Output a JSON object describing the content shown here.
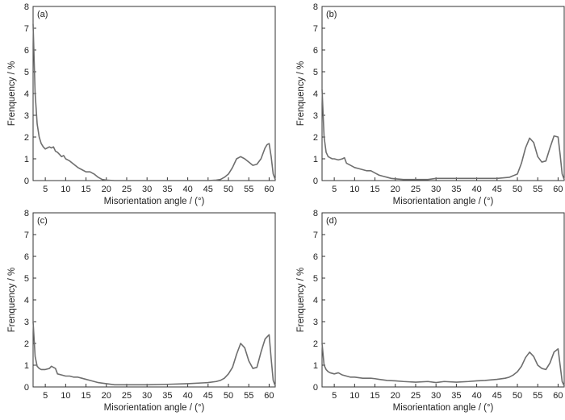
{
  "chart_data": [
    {
      "type": "line",
      "panel_label": "(a)",
      "xlabel": "Misorientation angle / (°)",
      "ylabel": "Frenquency / %",
      "xlim": [
        2,
        61.5
      ],
      "ylim": [
        0,
        8
      ],
      "xticks": [
        5,
        10,
        15,
        20,
        25,
        30,
        35,
        40,
        45,
        50,
        55,
        60
      ],
      "yticks": [
        0,
        1,
        2,
        3,
        4,
        5,
        6,
        7,
        8
      ],
      "grid": false,
      "line_color": "#6e6e6e",
      "series": [
        {
          "x": [
            2,
            2.5,
            3,
            3.5,
            4,
            4.5,
            5,
            5.5,
            6,
            6.5,
            7,
            7.5,
            8,
            8.5,
            9,
            9.5,
            10,
            10.5,
            11,
            12,
            13,
            14,
            15,
            16,
            17,
            18,
            19,
            20,
            22,
            25,
            30,
            35,
            40,
            45,
            47,
            48,
            49,
            50,
            51,
            52,
            53,
            54,
            55,
            56,
            57,
            58,
            59,
            59.5,
            60,
            60.5,
            61,
            61.5
          ],
          "y": [
            7.2,
            4.0,
            2.6,
            2.0,
            1.7,
            1.55,
            1.45,
            1.5,
            1.55,
            1.5,
            1.55,
            1.35,
            1.3,
            1.2,
            1.1,
            1.15,
            1.0,
            0.95,
            0.9,
            0.75,
            0.6,
            0.5,
            0.4,
            0.4,
            0.3,
            0.15,
            0.05,
            0.02,
            0.0,
            0.0,
            0.0,
            0.0,
            0.0,
            0.0,
            0.02,
            0.05,
            0.15,
            0.3,
            0.6,
            1.0,
            1.1,
            1.0,
            0.85,
            0.7,
            0.75,
            1.0,
            1.5,
            1.65,
            1.7,
            1.1,
            0.3,
            0.05
          ]
        }
      ]
    },
    {
      "type": "line",
      "panel_label": "(b)",
      "xlabel": "Misorientation angle / (°)",
      "ylabel": "Frenquency / %",
      "xlim": [
        2,
        61.5
      ],
      "ylim": [
        0,
        8
      ],
      "xticks": [
        5,
        10,
        15,
        20,
        25,
        30,
        35,
        40,
        45,
        50,
        55,
        60
      ],
      "yticks": [
        0,
        1,
        2,
        3,
        4,
        5,
        6,
        7,
        8
      ],
      "grid": false,
      "line_color": "#6e6e6e",
      "series": [
        {
          "x": [
            2,
            2.5,
            3,
            3.5,
            4,
            4.5,
            5,
            6,
            7,
            7.5,
            8,
            9,
            10,
            11,
            12,
            13,
            14,
            15,
            16,
            17,
            18,
            19,
            20,
            22,
            25,
            28,
            30,
            35,
            40,
            45,
            48,
            50,
            51,
            52,
            53,
            54,
            55,
            56,
            57,
            58,
            59,
            60,
            60.5,
            61,
            61.5
          ],
          "y": [
            4.2,
            2.0,
            1.3,
            1.1,
            1.05,
            1.0,
            1.0,
            0.95,
            1.0,
            1.05,
            0.8,
            0.7,
            0.6,
            0.55,
            0.5,
            0.45,
            0.45,
            0.35,
            0.25,
            0.2,
            0.15,
            0.1,
            0.08,
            0.05,
            0.05,
            0.05,
            0.1,
            0.1,
            0.1,
            0.1,
            0.15,
            0.3,
            0.8,
            1.5,
            1.95,
            1.75,
            1.1,
            0.85,
            0.9,
            1.5,
            2.05,
            2.0,
            1.2,
            0.3,
            0.05
          ]
        }
      ]
    },
    {
      "type": "line",
      "panel_label": "(c)",
      "xlabel": "Misorientation angle / (°)",
      "ylabel": "Frenquency / %",
      "xlim": [
        2,
        61.5
      ],
      "ylim": [
        0,
        8
      ],
      "xticks": [
        5,
        10,
        15,
        20,
        25,
        30,
        35,
        40,
        45,
        50,
        55,
        60
      ],
      "yticks": [
        0,
        1,
        2,
        3,
        4,
        5,
        6,
        7,
        8
      ],
      "grid": false,
      "line_color": "#6e6e6e",
      "series": [
        {
          "x": [
            2,
            2.5,
            3,
            3.5,
            4,
            5,
            6,
            6.5,
            7,
            7.5,
            8,
            9,
            10,
            11,
            12,
            13,
            14,
            15,
            16,
            17,
            18,
            20,
            22,
            25,
            28,
            30,
            35,
            40,
            45,
            47,
            48,
            49,
            50,
            51,
            52,
            53,
            54,
            55,
            56,
            57,
            58,
            59,
            60,
            60.5,
            61,
            61.5
          ],
          "y": [
            3.0,
            1.4,
            0.95,
            0.85,
            0.8,
            0.8,
            0.85,
            0.95,
            0.9,
            0.85,
            0.6,
            0.55,
            0.5,
            0.5,
            0.45,
            0.45,
            0.4,
            0.35,
            0.3,
            0.25,
            0.2,
            0.15,
            0.1,
            0.1,
            0.1,
            0.1,
            0.12,
            0.15,
            0.2,
            0.25,
            0.3,
            0.4,
            0.6,
            0.9,
            1.5,
            2.0,
            1.8,
            1.2,
            0.85,
            0.9,
            1.6,
            2.2,
            2.4,
            1.3,
            0.3,
            0.05
          ]
        }
      ]
    },
    {
      "type": "line",
      "panel_label": "(d)",
      "xlabel": "Misorientation angle / (°)",
      "ylabel": "Frenquency / %",
      "xlim": [
        2,
        61.5
      ],
      "ylim": [
        0,
        8
      ],
      "xticks": [
        5,
        10,
        15,
        20,
        25,
        30,
        35,
        40,
        45,
        50,
        55,
        60
      ],
      "yticks": [
        0,
        1,
        2,
        3,
        4,
        5,
        6,
        7,
        8
      ],
      "grid": false,
      "line_color": "#6e6e6e",
      "series": [
        {
          "x": [
            2,
            2.5,
            3,
            3.5,
            4,
            5,
            6,
            7,
            8,
            9,
            10,
            12,
            14,
            15,
            16,
            18,
            20,
            22,
            25,
            28,
            30,
            32,
            35,
            38,
            40,
            42,
            45,
            47,
            48,
            49,
            50,
            51,
            52,
            53,
            54,
            55,
            56,
            57,
            58,
            59,
            60,
            60.5,
            61,
            61.5
          ],
          "y": [
            2.0,
            1.0,
            0.8,
            0.7,
            0.65,
            0.6,
            0.65,
            0.55,
            0.5,
            0.45,
            0.45,
            0.4,
            0.4,
            0.38,
            0.35,
            0.3,
            0.28,
            0.25,
            0.22,
            0.25,
            0.2,
            0.25,
            0.22,
            0.25,
            0.28,
            0.3,
            0.35,
            0.4,
            0.45,
            0.55,
            0.7,
            0.95,
            1.35,
            1.6,
            1.4,
            1.0,
            0.85,
            0.8,
            1.1,
            1.6,
            1.75,
            1.0,
            0.25,
            0.05
          ]
        }
      ]
    }
  ]
}
